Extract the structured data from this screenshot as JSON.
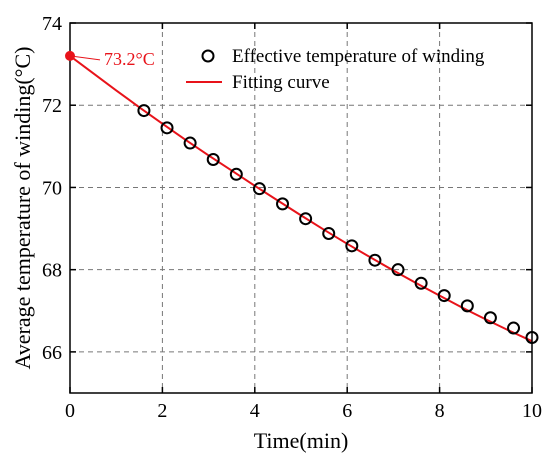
{
  "chart_data": {
    "type": "scatter",
    "xlabel": "Time(min)",
    "ylabel": "Average temperature of winding(°C)",
    "xlim": [
      0,
      10
    ],
    "ylim": [
      65,
      74
    ],
    "xticks": [
      0,
      2,
      4,
      6,
      8,
      10
    ],
    "yticks": [
      66,
      68,
      70,
      72,
      74
    ],
    "grid": true,
    "legend_position": "top-right",
    "series": [
      {
        "name": "Effective temperature of winding",
        "kind": "scatter",
        "marker": "open-circle",
        "color": "#000000",
        "x": [
          1.6,
          2.1,
          2.6,
          3.1,
          3.6,
          4.1,
          4.6,
          5.1,
          5.6,
          6.1,
          6.6,
          7.1,
          7.6,
          8.1,
          8.6,
          9.1,
          9.6,
          10.0
        ],
        "y": [
          71.87,
          71.45,
          71.08,
          70.68,
          70.32,
          69.97,
          69.6,
          69.24,
          68.88,
          68.58,
          68.23,
          68.0,
          67.67,
          67.37,
          67.12,
          66.83,
          66.58,
          66.35
        ]
      },
      {
        "name": "Fitting curve",
        "kind": "line",
        "color": "#e8131a",
        "x": [
          0,
          0.5,
          1.0,
          1.5,
          2.0,
          2.5,
          3.0,
          3.5,
          4.0,
          4.5,
          5.0,
          5.5,
          6.0,
          6.5,
          7.0,
          7.5,
          8.0,
          8.5,
          9.0,
          9.5,
          10.0
        ],
        "y": [
          73.2,
          72.78,
          72.36,
          71.95,
          71.55,
          71.16,
          70.78,
          70.41,
          70.04,
          69.68,
          69.32,
          68.97,
          68.63,
          68.3,
          67.98,
          67.67,
          67.37,
          67.07,
          66.79,
          66.52,
          66.26
        ]
      }
    ],
    "annotations": [
      {
        "text": "73.2°C",
        "x": 0,
        "y": 73.2,
        "color": "#e8131a"
      }
    ]
  }
}
